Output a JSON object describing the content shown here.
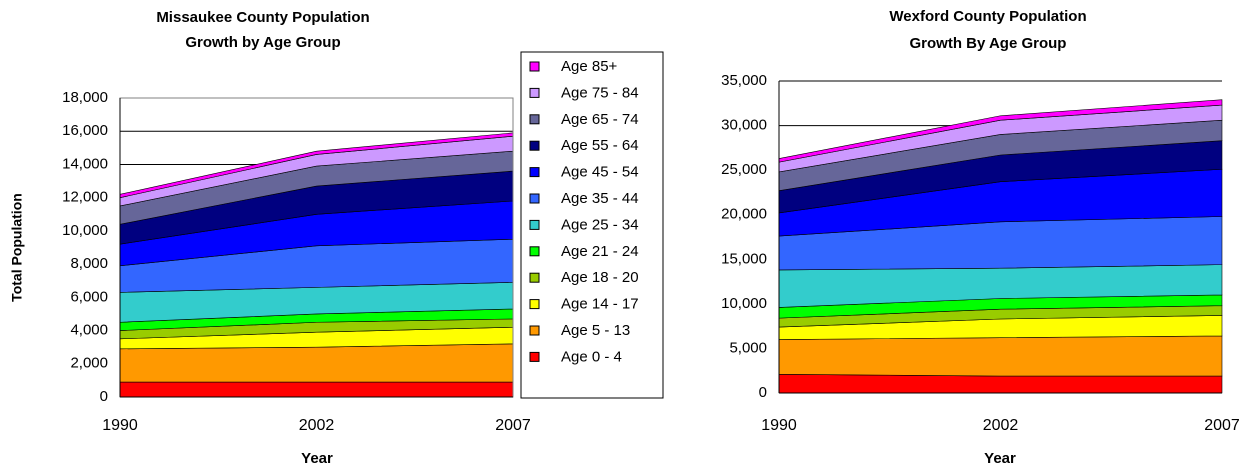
{
  "chart_data": [
    {
      "type": "stacked_area",
      "title": [
        "Missaukee County Population",
        "Growth by Age Group"
      ],
      "x_label": "Year",
      "y_label": "Total Population",
      "categories": [
        "1990",
        "2002",
        "2007"
      ],
      "ylim": [
        0,
        18000
      ],
      "yticks": [
        0,
        {
          "value": 2000,
          "label": "2,000"
        },
        {
          "value": 4000,
          "label": "4,000"
        },
        {
          "value": 6000,
          "label": "6,000"
        },
        {
          "value": 8000,
          "label": "8,000"
        },
        {
          "value": 10000,
          "label": "10,000"
        },
        {
          "value": 12000,
          "label": "12,000"
        },
        {
          "value": 14000,
          "label": "14,000"
        },
        {
          "value": 16000,
          "label": "16,000"
        },
        {
          "value": 18000,
          "label": "18,000"
        }
      ],
      "grid": true,
      "legend": "right",
      "series": [
        {
          "name": "Age 0 - 4",
          "color": "#ff0000",
          "values": [
            900,
            900,
            900
          ]
        },
        {
          "name": "Age 5 - 13",
          "color": "#ff9900",
          "values": [
            2000,
            2100,
            2300
          ]
        },
        {
          "name": "Age 14 - 17",
          "color": "#ffff00",
          "values": [
            600,
            900,
            1000
          ]
        },
        {
          "name": "Age 18 - 20",
          "color": "#99cc00",
          "values": [
            500,
            600,
            500
          ]
        },
        {
          "name": "Age 21 - 24",
          "color": "#00ff00",
          "values": [
            500,
            500,
            600
          ]
        },
        {
          "name": "Age 25 - 34",
          "color": "#33cccc",
          "values": [
            1800,
            1600,
            1600
          ]
        },
        {
          "name": "Age 35 - 44",
          "color": "#3366ff",
          "values": [
            1600,
            2500,
            2600
          ]
        },
        {
          "name": "Age 45 - 54",
          "color": "#0000ff",
          "values": [
            1300,
            1900,
            2300
          ]
        },
        {
          "name": "Age 55 - 64",
          "color": "#000080",
          "values": [
            1200,
            1700,
            1800
          ]
        },
        {
          "name": "Age 65 - 74",
          "color": "#666699",
          "values": [
            1100,
            1200,
            1200
          ]
        },
        {
          "name": "Age 75 - 84",
          "color": "#cc99ff",
          "values": [
            500,
            700,
            900
          ]
        },
        {
          "name": "Age 85+",
          "color": "#ff00ff",
          "values": [
            200,
            200,
            200
          ]
        }
      ]
    },
    {
      "type": "stacked_area",
      "title": [
        "Wexford County Population",
        "Growth By Age Group"
      ],
      "x_label": "Year",
      "categories": [
        "1990",
        "2002",
        "2007"
      ],
      "ylim": [
        0,
        35000
      ],
      "yticks": [
        0,
        {
          "value": 5000,
          "label": "5,000"
        },
        {
          "value": 10000,
          "label": "10,000"
        },
        {
          "value": 15000,
          "label": "15,000"
        },
        {
          "value": 20000,
          "label": "20,000"
        },
        {
          "value": 25000,
          "label": "25,000"
        },
        {
          "value": 30000,
          "label": "30,000"
        },
        {
          "value": 35000,
          "label": "35,000"
        }
      ],
      "grid": true,
      "series": [
        {
          "color": "#ff0000",
          "values": [
            2100,
            1900,
            1900
          ]
        },
        {
          "color": "#ff9900",
          "values": [
            3900,
            4300,
            4500
          ]
        },
        {
          "color": "#ffff00",
          "values": [
            1400,
            2100,
            2300
          ]
        },
        {
          "color": "#99cc00",
          "values": [
            1000,
            1100,
            1100
          ]
        },
        {
          "color": "#00ff00",
          "values": [
            1200,
            1200,
            1200
          ]
        },
        {
          "color": "#33cccc",
          "values": [
            4200,
            3400,
            3400
          ]
        },
        {
          "color": "#3366ff",
          "values": [
            3800,
            5200,
            5400
          ]
        },
        {
          "color": "#0000ff",
          "values": [
            2600,
            4500,
            5300
          ]
        },
        {
          "color": "#000080",
          "values": [
            2500,
            3000,
            3200
          ]
        },
        {
          "color": "#666699",
          "values": [
            2100,
            2300,
            2300
          ]
        },
        {
          "color": "#cc99ff",
          "values": [
            1100,
            1600,
            1700
          ]
        },
        {
          "color": "#ff00ff",
          "values": [
            400,
            500,
            600
          ]
        }
      ]
    }
  ]
}
